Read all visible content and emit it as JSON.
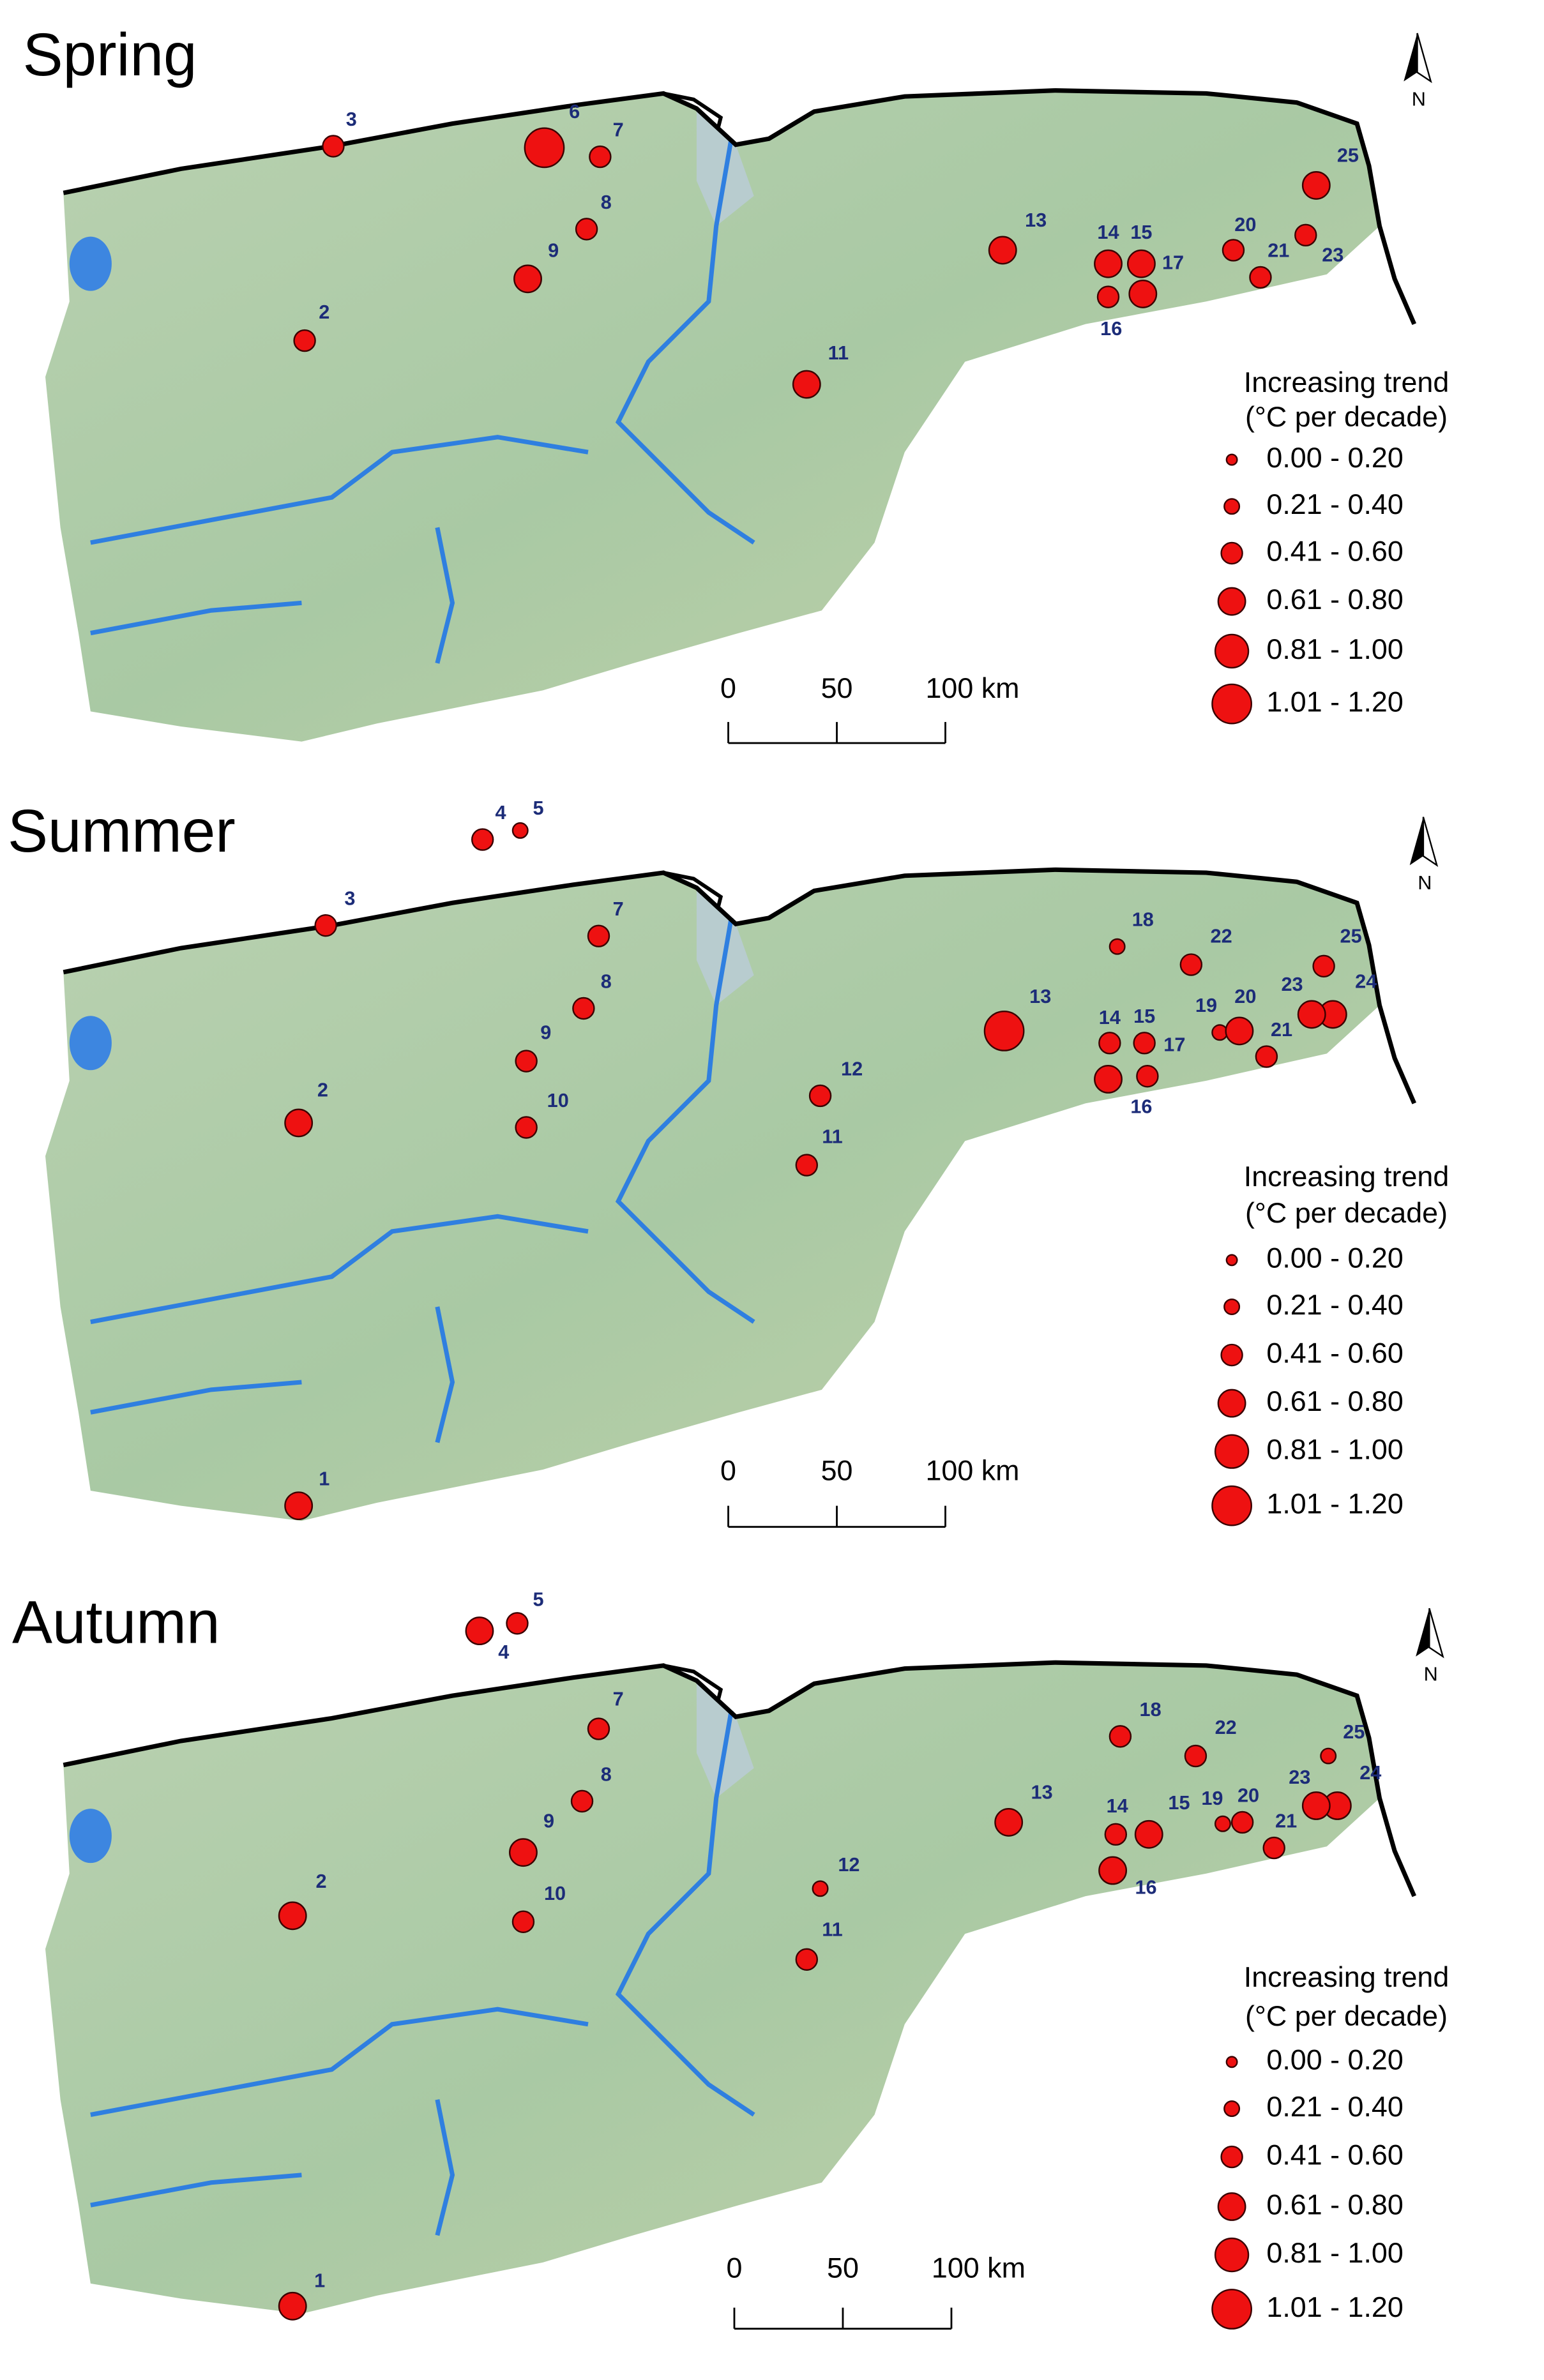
{
  "panels": [
    {
      "title": "Spring",
      "north": "N",
      "stations": [
        {
          "label": "3",
          "class": 2
        },
        {
          "label": "6",
          "class": 5
        },
        {
          "label": "7",
          "class": 2
        },
        {
          "label": "8",
          "class": 2
        },
        {
          "label": "9",
          "class": 3
        },
        {
          "label": "2",
          "class": 2
        },
        {
          "label": "13",
          "class": 3
        },
        {
          "label": "14",
          "class": 3
        },
        {
          "label": "15",
          "class": 3
        },
        {
          "label": "16",
          "class": 2
        },
        {
          "label": "17",
          "class": 3
        },
        {
          "label": "20",
          "class": 2
        },
        {
          "label": "21",
          "class": 2
        },
        {
          "label": "23",
          "class": 2
        },
        {
          "label": "25",
          "class": 3
        },
        {
          "label": "11",
          "class": 3
        }
      ],
      "legend": {
        "title": [
          "Increasing trend",
          "(°C per decade)"
        ],
        "items": [
          "0.00 - 0.20",
          "0.21 - 0.40",
          "0.41 - 0.60",
          "0.61 - 0.80",
          "0.81 - 1.00",
          "1.01 - 1.20"
        ]
      },
      "scale_bar": [
        "0",
        "50",
        "100 km"
      ]
    },
    {
      "title": "Summer",
      "north": "N",
      "stations": [
        {
          "label": "4",
          "class": 2
        },
        {
          "label": "5",
          "class": 1
        },
        {
          "label": "3",
          "class": 2
        },
        {
          "label": "7",
          "class": 2
        },
        {
          "label": "8",
          "class": 2
        },
        {
          "label": "9",
          "class": 2
        },
        {
          "label": "10",
          "class": 2
        },
        {
          "label": "2",
          "class": 3
        },
        {
          "label": "1",
          "class": 3
        },
        {
          "label": "13",
          "class": 5
        },
        {
          "label": "12",
          "class": 2
        },
        {
          "label": "11",
          "class": 2
        },
        {
          "label": "18",
          "class": 1
        },
        {
          "label": "22",
          "class": 2
        },
        {
          "label": "25",
          "class": 2
        },
        {
          "label": "24",
          "class": 3
        },
        {
          "label": "23",
          "class": 3
        },
        {
          "label": "19",
          "class": 1
        },
        {
          "label": "20",
          "class": 3
        },
        {
          "label": "21",
          "class": 2
        },
        {
          "label": "14",
          "class": 2
        },
        {
          "label": "15",
          "class": 2
        },
        {
          "label": "17",
          "class": 2
        },
        {
          "label": "16",
          "class": 3
        }
      ],
      "legend": {
        "title": [
          "Increasing trend",
          "(°C per decade)"
        ],
        "items": [
          "0.00 - 0.20",
          "0.21 - 0.40",
          "0.41 - 0.60",
          "0.61 - 0.80",
          "0.81 - 1.00",
          "1.01 - 1.20"
        ]
      },
      "scale_bar": [
        "0",
        "50",
        "100 km"
      ]
    },
    {
      "title": "Autumn",
      "north": "N",
      "stations": [
        {
          "label": "4",
          "class": 3
        },
        {
          "label": "5",
          "class": 2
        },
        {
          "label": "7",
          "class": 2
        },
        {
          "label": "8",
          "class": 2
        },
        {
          "label": "9",
          "class": 3
        },
        {
          "label": "10",
          "class": 2
        },
        {
          "label": "2",
          "class": 3
        },
        {
          "label": "1",
          "class": 3
        },
        {
          "label": "13",
          "class": 3
        },
        {
          "label": "12",
          "class": 1
        },
        {
          "label": "11",
          "class": 2
        },
        {
          "label": "18",
          "class": 2
        },
        {
          "label": "22",
          "class": 2
        },
        {
          "label": "25",
          "class": 1
        },
        {
          "label": "24",
          "class": 3
        },
        {
          "label": "23",
          "class": 3
        },
        {
          "label": "19",
          "class": 1
        },
        {
          "label": "20",
          "class": 2
        },
        {
          "label": "21",
          "class": 2
        },
        {
          "label": "14",
          "class": 2
        },
        {
          "label": "15",
          "class": 3
        },
        {
          "label": "16",
          "class": 3
        }
      ],
      "legend": {
        "title": [
          "Increasing trend",
          "(°C per decade)"
        ],
        "items": [
          "0.00 - 0.20",
          "0.21 - 0.40",
          "0.41 - 0.60",
          "0.61 - 0.80",
          "0.81 - 1.00",
          "1.01 - 1.20"
        ]
      },
      "scale_bar": [
        "0",
        "50",
        "100 km"
      ]
    }
  ]
}
